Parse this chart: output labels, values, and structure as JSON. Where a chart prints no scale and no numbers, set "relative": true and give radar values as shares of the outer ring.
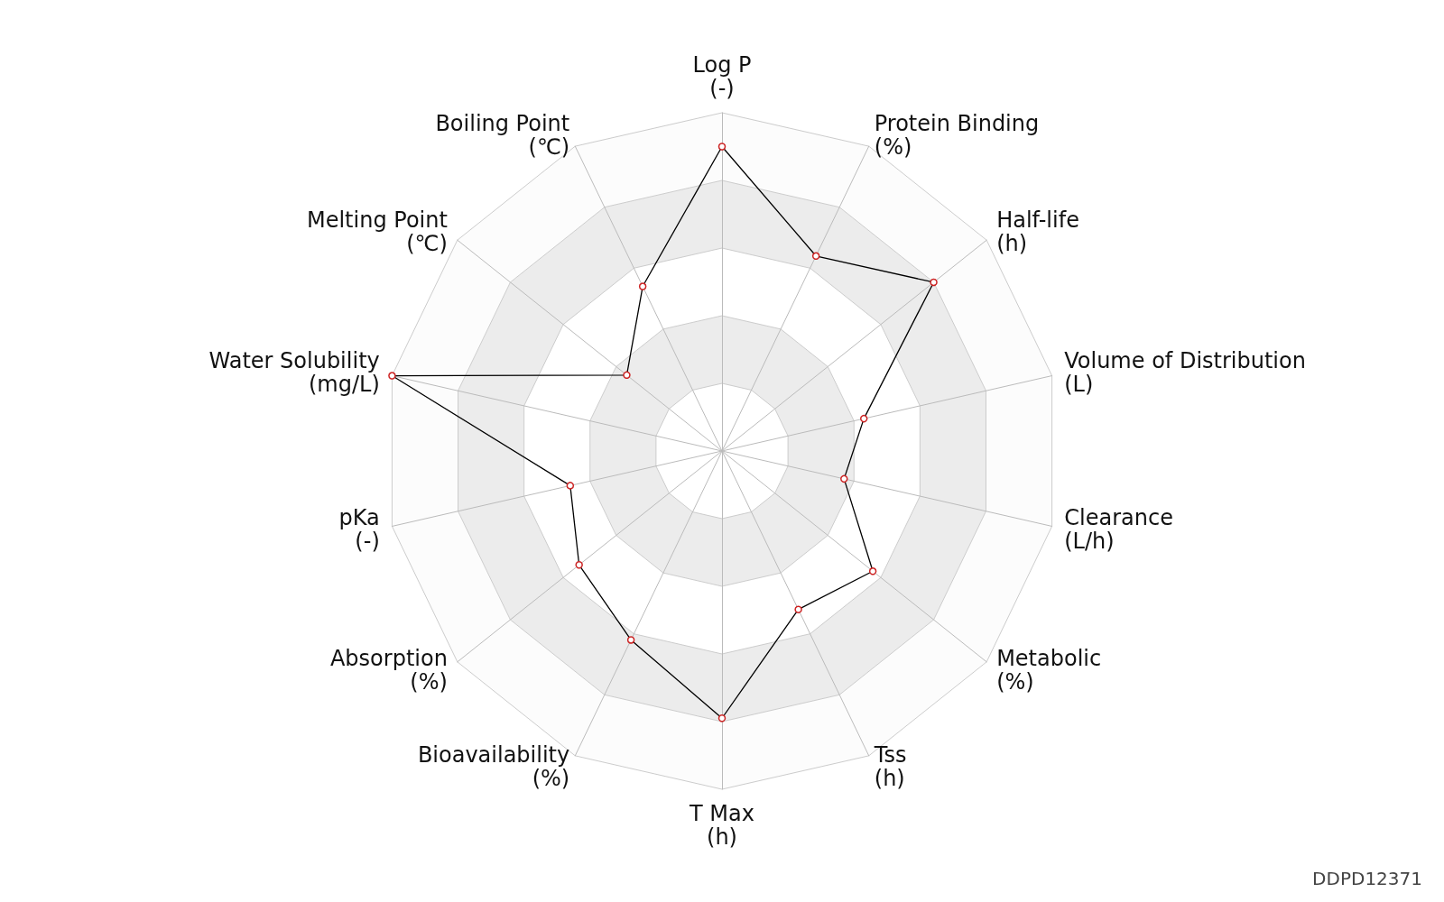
{
  "chart_data": {
    "type": "radar",
    "relative": true,
    "marker": "circle",
    "categories": [
      "Log P\n(-)",
      "Protein Binding\n(%)",
      "Half-life\n(h)",
      "Volume of Distribution\n(L)",
      "Clearance\n(L/h)",
      "Metabolic\n(%)",
      "Tss\n(h)",
      "T Max\n(h)",
      "Bioavailability\n(%)",
      "Absorption\n(%)",
      "pKa\n(-)",
      "Water Solubility\n(mg/L)",
      "Melting Point\n(℃)",
      "Boiling Point\n(℃)"
    ],
    "series": [
      {
        "color": "#000000",
        "values": [
          0.9,
          0.64,
          0.8,
          0.43,
          0.37,
          0.57,
          0.52,
          0.79,
          0.62,
          0.54,
          0.46,
          1.0,
          0.36,
          0.54
        ]
      }
    ],
    "annotations": [
      "DDPD12371"
    ]
  }
}
